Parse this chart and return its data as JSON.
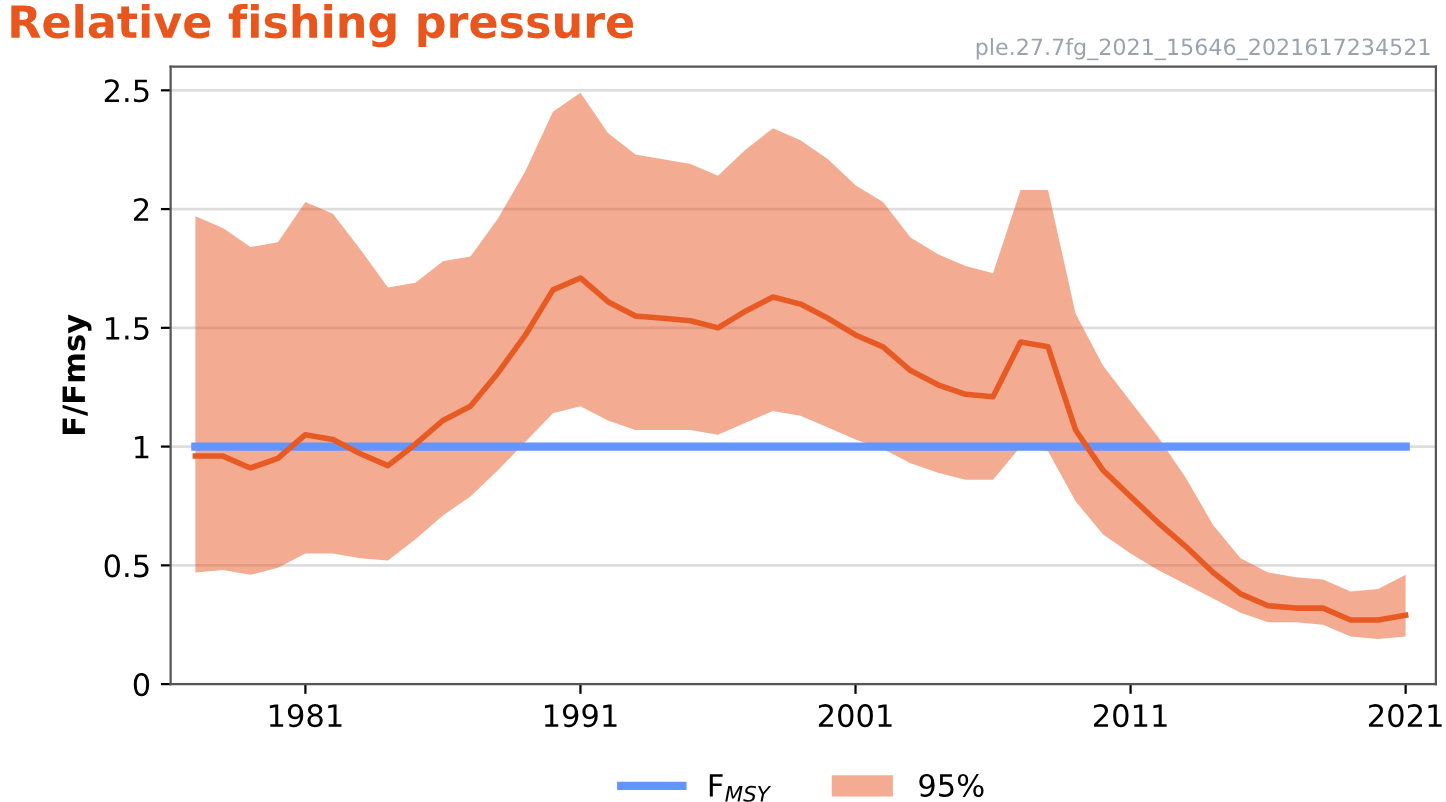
{
  "chart_data": {
    "type": "line",
    "title": "Relative fishing pressure",
    "ylabel": "F/Fmsy",
    "annotations": [
      "ple.27.7fg_2021_15646_2021617234521"
    ],
    "x": [
      1977,
      1978,
      1979,
      1980,
      1981,
      1982,
      1983,
      1984,
      1985,
      1986,
      1987,
      1988,
      1989,
      1990,
      1991,
      1992,
      1993,
      1994,
      1995,
      1996,
      1997,
      1998,
      1999,
      2000,
      2001,
      2002,
      2003,
      2004,
      2005,
      2006,
      2007,
      2008,
      2009,
      2010,
      2011,
      2012,
      2013,
      2014,
      2015,
      2016,
      2017,
      2018,
      2019,
      2020,
      2021
    ],
    "series": [
      {
        "name": "F$_{MSY}$",
        "color": "#6495ff",
        "x": [
          1977,
          2021
        ],
        "values": [
          1,
          1
        ]
      },
      {
        "name": "95%",
        "color": "#e85a24",
        "values": [
          0.96,
          0.96,
          0.91,
          0.95,
          1.05,
          1.03,
          0.97,
          0.92,
          1.01,
          1.11,
          1.17,
          1.31,
          1.47,
          1.66,
          1.71,
          1.61,
          1.55,
          1.54,
          1.53,
          1.5,
          1.57,
          1.63,
          1.6,
          1.54,
          1.47,
          1.42,
          1.32,
          1.26,
          1.22,
          1.21,
          1.44,
          1.42,
          1.07,
          0.9,
          0.79,
          0.68,
          0.58,
          0.47,
          0.38,
          0.33,
          0.32,
          0.32,
          0.27,
          0.27,
          0.29
        ],
        "upper": [
          1.97,
          1.92,
          1.84,
          1.86,
          2.03,
          1.98,
          1.83,
          1.67,
          1.69,
          1.78,
          1.8,
          1.96,
          2.16,
          2.41,
          2.49,
          2.32,
          2.23,
          2.21,
          2.19,
          2.14,
          2.25,
          2.34,
          2.29,
          2.21,
          2.1,
          2.03,
          1.88,
          1.81,
          1.76,
          1.73,
          2.08,
          2.08,
          1.56,
          1.34,
          1.19,
          1.04,
          0.87,
          0.67,
          0.53,
          0.47,
          0.45,
          0.44,
          0.39,
          0.4,
          0.46
        ],
        "lower": [
          0.47,
          0.48,
          0.46,
          0.49,
          0.55,
          0.55,
          0.53,
          0.52,
          0.61,
          0.71,
          0.79,
          0.9,
          1.02,
          1.14,
          1.17,
          1.11,
          1.07,
          1.07,
          1.07,
          1.05,
          1.1,
          1.15,
          1.13,
          1.08,
          1.03,
          0.99,
          0.93,
          0.89,
          0.86,
          0.86,
          1.0,
          0.98,
          0.77,
          0.63,
          0.55,
          0.48,
          0.42,
          0.36,
          0.3,
          0.26,
          0.26,
          0.25,
          0.2,
          0.19,
          0.2
        ]
      }
    ],
    "xlim": [
      1976.1,
      2022.1
    ],
    "xticks": [
      1981,
      1991,
      2001,
      2011,
      2021
    ],
    "ylim": [
      0,
      2.6
    ],
    "yticks": [
      0,
      0.5,
      1,
      1.5,
      2,
      2.5
    ],
    "grid": "y",
    "legend": "bottom"
  }
}
